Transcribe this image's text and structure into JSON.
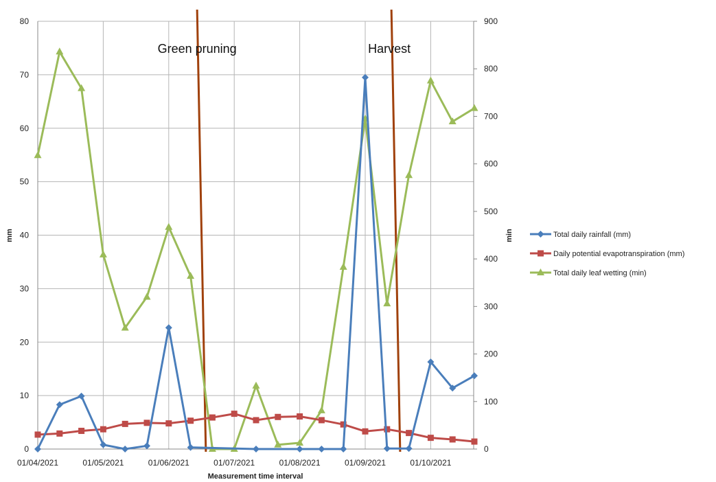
{
  "chart_data": {
    "type": "line",
    "xlabel": "Measurement time interval",
    "ylabel": "mm",
    "ylabel_right": "min",
    "ylim": [
      0,
      80
    ],
    "ylim_right": [
      0,
      900
    ],
    "y_ticks": [
      "0",
      "10",
      "20",
      "30",
      "40",
      "50",
      "60",
      "70",
      "80"
    ],
    "y_right_ticks": [
      "0",
      "100",
      "200",
      "300",
      "400",
      "500",
      "600",
      "700",
      "800",
      "900"
    ],
    "x_tick_labels": [
      {
        "label": "01/04/2021",
        "index": 0
      },
      {
        "label": "01/05/2021",
        "index": 3
      },
      {
        "label": "01/06/2021",
        "index": 6
      },
      {
        "label": "01/07/2021",
        "index": 9
      },
      {
        "label": "01/08/2021",
        "index": 12
      },
      {
        "label": "01/09/2021",
        "index": 15
      },
      {
        "label": "01/10/2021",
        "index": 18
      }
    ],
    "x_count": 21,
    "grid": true,
    "legend_position": "right",
    "events": [
      {
        "label": "Green pruning",
        "x_top": 7.3,
        "x_bottom": 7.7
      },
      {
        "label": "Harvest",
        "x_top": 16.2,
        "x_bottom": 16.6
      }
    ],
    "series": [
      {
        "name": "Total daily rainfall (mm)",
        "axis": "left",
        "color": "#4a7ebb",
        "marker": "diamond",
        "values": [
          0.0,
          8.3,
          9.9,
          0.8,
          0.0,
          0.6,
          22.7,
          0.3,
          null,
          null,
          0.0,
          null,
          0.0,
          0.0,
          0.0,
          69.5,
          0.1,
          0.1,
          16.3,
          11.4,
          13.7
        ]
      },
      {
        "name": "Daily potential evapotranspiration (mm)",
        "axis": "left",
        "color": "#be4b48",
        "marker": "square",
        "values": [
          2.7,
          2.9,
          3.4,
          3.7,
          4.7,
          4.9,
          4.8,
          5.3,
          5.9,
          6.6,
          5.4,
          6.0,
          6.1,
          5.4,
          4.6,
          3.3,
          3.7,
          3.0,
          2.1,
          1.8,
          1.4
        ]
      },
      {
        "name": "Total daily leaf wetting (min)",
        "axis": "right",
        "color": "#9bbb59",
        "marker": "triangle",
        "values": [
          618,
          836,
          759,
          409,
          255,
          320,
          467,
          364,
          0,
          0,
          133,
          9,
          13,
          81,
          383,
          695,
          306,
          576,
          775,
          689,
          717
        ]
      }
    ]
  }
}
